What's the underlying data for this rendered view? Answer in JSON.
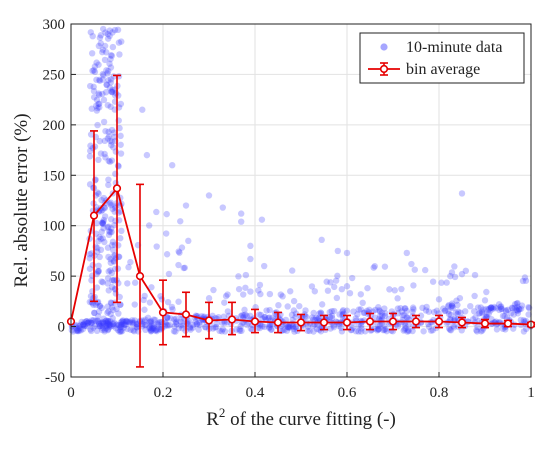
{
  "chart_data": {
    "type": "scatter",
    "title": "",
    "xlabel_prefix": "R",
    "xlabel_sup": "2",
    "xlabel_suffix": " of the curve fitting (-)",
    "ylabel": "Rel. absolute error (%)",
    "xlim": [
      0,
      1
    ],
    "ylim": [
      -50,
      300
    ],
    "x_ticks": [
      0,
      0.2,
      0.4,
      0.6,
      0.8,
      1
    ],
    "x_tick_labels": [
      "0",
      "0.2",
      "0.4",
      "0.6",
      "0.8",
      "1"
    ],
    "y_ticks": [
      -50,
      0,
      50,
      100,
      150,
      200,
      250,
      300
    ],
    "y_tick_labels": [
      "-50",
      "0",
      "50",
      "100",
      "150",
      "200",
      "250",
      "300"
    ],
    "grid": true,
    "legend_position": "top-right",
    "series": [
      {
        "name": "10-minute data",
        "kind": "scatter",
        "color": "#3a3aff",
        "clusters": [
          {
            "x_range": [
              0.04,
              0.11
            ],
            "y_range": [
              0,
              295
            ],
            "count": 300
          },
          {
            "x_range": [
              0.11,
              0.25
            ],
            "y_range": [
              0,
              120
            ],
            "count": 40
          },
          {
            "x_range": [
              0.0,
              1.0
            ],
            "y_range": [
              -5,
              25
            ],
            "count": 650
          },
          {
            "x_range": [
              0.3,
              1.0
            ],
            "y_range": [
              15,
              60
            ],
            "count": 80
          }
        ],
        "points": [
          [
            0.07,
            295
          ],
          [
            0.08,
            290
          ],
          [
            0.155,
            215
          ],
          [
            0.165,
            170
          ],
          [
            0.22,
            160
          ],
          [
            0.25,
            120
          ],
          [
            0.255,
            85
          ],
          [
            0.3,
            130
          ],
          [
            0.33,
            118
          ],
          [
            0.37,
            112
          ],
          [
            0.37,
            104
          ],
          [
            0.415,
            106
          ],
          [
            0.39,
            80
          ],
          [
            0.42,
            60
          ],
          [
            0.39,
            67
          ],
          [
            0.545,
            86
          ],
          [
            0.58,
            75
          ],
          [
            0.6,
            73
          ],
          [
            0.73,
            73
          ],
          [
            0.74,
            62
          ],
          [
            0.77,
            56
          ],
          [
            0.85,
            132
          ],
          [
            0.85,
            52
          ],
          [
            0.6,
            40
          ],
          [
            0.53,
            35
          ],
          [
            0.46,
            30
          ],
          [
            0.63,
            32
          ],
          [
            0.71,
            28
          ],
          [
            0.8,
            27
          ],
          [
            0.9,
            26
          ]
        ]
      },
      {
        "name": "bin average",
        "kind": "line-errorbar",
        "color": "#e60000",
        "x": [
          0,
          0.05,
          0.1,
          0.15,
          0.2,
          0.25,
          0.3,
          0.35,
          0.4,
          0.45,
          0.5,
          0.55,
          0.6,
          0.65,
          0.7,
          0.75,
          0.8,
          0.85,
          0.9,
          0.95,
          1.0
        ],
        "y": [
          5,
          110,
          137,
          50,
          14,
          12,
          6,
          7,
          5,
          4,
          4,
          4,
          4,
          5,
          5,
          5,
          5,
          4,
          3,
          3,
          2
        ],
        "err_low": [
          0,
          85,
          113,
          90,
          32,
          22,
          18,
          15,
          11,
          10,
          8,
          7,
          7,
          8,
          8,
          6,
          6,
          5,
          4,
          3,
          2
        ],
        "err_high": [
          0,
          84,
          112,
          91,
          32,
          22,
          18,
          17,
          12,
          10,
          8,
          7,
          7,
          8,
          8,
          6,
          6,
          5,
          4,
          3,
          2
        ]
      }
    ]
  }
}
